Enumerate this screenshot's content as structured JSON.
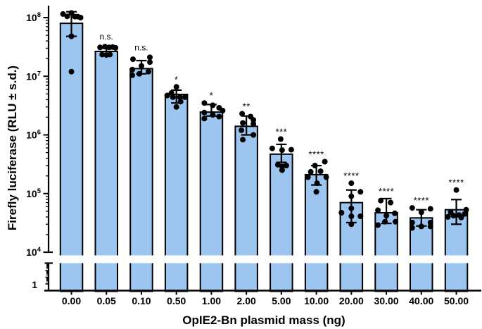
{
  "chart_data": {
    "type": "bar",
    "title": "",
    "xlabel": "OpIE2-Bn plasmid mass (ng)",
    "ylabel": "Firefly luciferase (RLU ± s.d.)",
    "yscale": "log",
    "ylim": [
      1,
      200000000.0
    ],
    "axis_break": {
      "lower_value": 1,
      "upper_value": 10000,
      "note": "y-axis break between 1 and 10^4"
    },
    "grid": false,
    "legend": "none",
    "bar_fill_color": "#9CC5F0",
    "bar_stroke_color": "#000000",
    "point_color": "#000000",
    "error_bar_color": "#000000",
    "y_ticks": [
      {
        "base": "10",
        "exp": "8",
        "value": 100000000.0
      },
      {
        "base": "10",
        "exp": "7",
        "value": 10000000.0
      },
      {
        "base": "10",
        "exp": "6",
        "value": 1000000.0
      },
      {
        "base": "10",
        "exp": "5",
        "value": 100000.0
      },
      {
        "base": "10",
        "exp": "4",
        "value": 10000.0
      }
    ],
    "y_bottom_tick_label": "1",
    "categories": [
      "0.00",
      "0.05",
      "0.10",
      "0.50",
      "1.00",
      "2.00",
      "5.00",
      "10.00",
      "20.00",
      "30.00",
      "40.00",
      "50.00"
    ],
    "significance": [
      "",
      "n.s.",
      "n.s.",
      "*",
      "*",
      "**",
      "***",
      "****",
      "****",
      "****",
      "****",
      "****"
    ],
    "bars": [
      {
        "category": "0.00",
        "mean": 80000000.0,
        "err_lo": 48000000.0,
        "err_hi": 126000000.0,
        "sig": "",
        "points": [
          [
            120000000.0,
            0
          ],
          [
            115000000.0,
            -12
          ],
          [
            105000000.0,
            -6
          ],
          [
            104000000.0,
            5
          ],
          [
            104000000.0,
            9
          ],
          [
            100000000.0,
            13
          ],
          [
            48000000.0,
            0
          ],
          [
            12000000.0,
            0
          ]
        ]
      },
      {
        "category": "0.05",
        "mean": 26500000.0,
        "err_lo": 24000000.0,
        "err_hi": 30000000.0,
        "sig": "n.s.",
        "points": [
          [
            32000000.0,
            -2
          ],
          [
            31500000.0,
            9
          ],
          [
            31000000.0,
            -9
          ],
          [
            31000000.0,
            4
          ],
          [
            30500000.0,
            13
          ],
          [
            23500000.0,
            -6
          ],
          [
            23500000.0,
            5
          ],
          [
            23000000.0,
            0
          ]
        ]
      },
      {
        "category": "0.10",
        "mean": 13500000.0,
        "err_lo": 11000000.0,
        "err_hi": 18500000.0,
        "sig": "n.s.",
        "points": [
          [
            21000000.0,
            12
          ],
          [
            19500000.0,
            -12
          ],
          [
            17400000.0,
            12
          ],
          [
            15000000.0,
            0
          ],
          [
            13000000.0,
            -13
          ],
          [
            12000000.0,
            10
          ],
          [
            11000000.0,
            -3
          ],
          [
            10400000.0,
            -13
          ]
        ]
      },
      {
        "category": "0.50",
        "mean": 4900000.0,
        "err_lo": 3500000.0,
        "err_hi": 5800000.0,
        "sig": "*",
        "points": [
          [
            6600000.0,
            0
          ],
          [
            5200000.0,
            -7
          ],
          [
            4700000.0,
            -13
          ],
          [
            4400000.0,
            -5
          ],
          [
            4400000.0,
            5
          ],
          [
            4400000.0,
            12
          ],
          [
            3700000.0,
            6
          ],
          [
            3000000.0,
            0
          ]
        ]
      },
      {
        "category": "1.00",
        "mean": 2450000.0,
        "err_lo": 2100000.0,
        "err_hi": 3300000.0,
        "sig": "*",
        "points": [
          [
            3500000.0,
            -10
          ],
          [
            3200000.0,
            2
          ],
          [
            2900000.0,
            11
          ],
          [
            2600000.0,
            16
          ],
          [
            2400000.0,
            -10
          ],
          [
            2200000.0,
            2
          ],
          [
            2050000.0,
            11
          ],
          [
            1900000.0,
            -10
          ]
        ]
      },
      {
        "category": "2.00",
        "mean": 1400000.0,
        "err_lo": 1000000.0,
        "err_hi": 2100000.0,
        "sig": "**",
        "points": [
          [
            2300000.0,
            -6
          ],
          [
            2050000.0,
            6
          ],
          [
            1800000.0,
            10
          ],
          [
            1600000.0,
            -5
          ],
          [
            1550000.0,
            10
          ],
          [
            1200000.0,
            -7
          ],
          [
            1000000.0,
            10
          ],
          [
            830000.0,
            -5
          ]
        ]
      },
      {
        "category": "5.00",
        "mean": 470000.0,
        "err_lo": 340000.0,
        "err_hi": 690000.0,
        "sig": "***",
        "points": [
          [
            850000.0,
            -1
          ],
          [
            590000.0,
            -13
          ],
          [
            560000.0,
            14
          ],
          [
            550000.0,
            1
          ],
          [
            310000.0,
            -5
          ],
          [
            300000.0,
            7
          ],
          [
            290000.0,
            1
          ],
          [
            250000.0,
            1
          ]
        ]
      },
      {
        "category": "10.00",
        "mean": 210000.0,
        "err_lo": 140000.0,
        "err_hi": 300000.0,
        "sig": "****",
        "points": [
          [
            350000.0,
            12
          ],
          [
            300000.0,
            -2
          ],
          [
            240000.0,
            6
          ],
          [
            235000.0,
            -8
          ],
          [
            190000.0,
            14
          ],
          [
            190000.0,
            -12
          ],
          [
            150000.0,
            1
          ],
          [
            107000.0,
            0
          ]
        ]
      },
      {
        "category": "20.00",
        "mean": 70000.0,
        "err_lo": 32000.0,
        "err_hi": 115000.0,
        "sig": "****",
        "points": [
          [
            150000.0,
            0
          ],
          [
            107000.0,
            13
          ],
          [
            90000.0,
            0
          ],
          [
            56000.0,
            0
          ],
          [
            47000.0,
            -14
          ],
          [
            41000.0,
            0
          ],
          [
            41000.0,
            13
          ],
          [
            30000.0,
            0
          ]
        ]
      },
      {
        "category": "30.00",
        "mean": 47000.0,
        "err_lo": 31000.0,
        "err_hi": 82000.0,
        "sig": "****",
        "points": [
          [
            76000.0,
            -8
          ],
          [
            70000.0,
            6
          ],
          [
            52000.0,
            -12
          ],
          [
            46000.0,
            12
          ],
          [
            42000.0,
            0
          ],
          [
            33000.0,
            -2
          ],
          [
            33000.0,
            13
          ],
          [
            29000.0,
            -12
          ]
        ]
      },
      {
        "category": "40.00",
        "mean": 38500.0,
        "err_lo": 28000.0,
        "err_hi": 53000.0,
        "sig": "****",
        "points": [
          [
            57000.0,
            -13
          ],
          [
            55000.0,
            13
          ],
          [
            48000.0,
            0
          ],
          [
            32000.0,
            -13
          ],
          [
            32000.0,
            13
          ],
          [
            27500.0,
            0
          ],
          [
            27500.0,
            13
          ],
          [
            26000.0,
            -13
          ]
        ]
      },
      {
        "category": "50.00",
        "mean": 53000.0,
        "err_lo": 30000.0,
        "err_hi": 79000.0,
        "sig": "****",
        "points": [
          [
            115000.0,
            0
          ],
          [
            53000.0,
            14
          ],
          [
            48000.0,
            -8
          ],
          [
            45000.0,
            12
          ],
          [
            43000.0,
            4
          ],
          [
            42000.0,
            -4
          ],
          [
            40000.0,
            -12
          ],
          [
            39000.0,
            7
          ]
        ]
      }
    ]
  }
}
